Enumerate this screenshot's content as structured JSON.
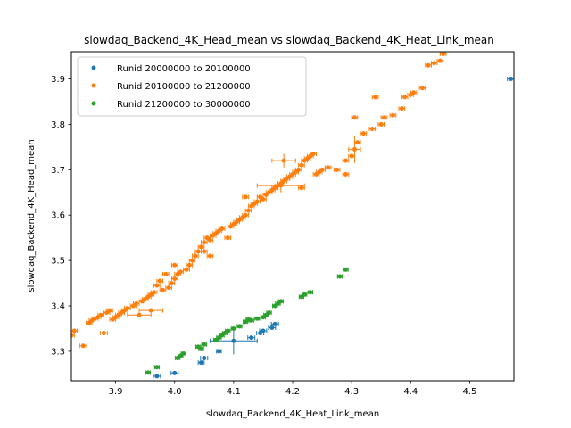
{
  "chart_data": {
    "type": "scatter",
    "title": "slowdaq_Backend_4K_Head_mean vs slowdaq_Backend_4K_Heat_Link_mean",
    "xlabel": "slowdaq_Backend_4K_Heat_Link_mean",
    "ylabel": "slowdaq_Backend_4K_Head_mean",
    "xlim": [
      3.825,
      4.575
    ],
    "ylim": [
      3.235,
      3.96
    ],
    "x_ticks": [
      "3.9",
      "4.0",
      "4.1",
      "4.2",
      "4.3",
      "4.4",
      "4.5"
    ],
    "y_ticks": [
      "3.3",
      "3.4",
      "3.5",
      "3.6",
      "3.7",
      "3.8",
      "3.9"
    ],
    "error_bars": true,
    "grid": false,
    "legend_position": "top-left",
    "series": [
      {
        "name": "Runid 20000000 to 20100000",
        "color": "#1f77b4",
        "points": [
          [
            3.97,
            3.245,
            0.006,
            0.003
          ],
          [
            4.0,
            3.252,
            0.006,
            0.003
          ],
          [
            4.045,
            3.275,
            0.005,
            0.003
          ],
          [
            4.05,
            3.285,
            0.006,
            0.003
          ],
          [
            4.075,
            3.3,
            0.004,
            0.005
          ],
          [
            4.1,
            3.323,
            0.04,
            0.03
          ],
          [
            4.13,
            3.33,
            0.006,
            0.003
          ],
          [
            4.145,
            3.34,
            0.006,
            0.003
          ],
          [
            4.15,
            3.345,
            0.006,
            0.003
          ],
          [
            4.165,
            3.352,
            0.006,
            0.003
          ],
          [
            4.17,
            3.36,
            0.006,
            0.003
          ],
          [
            4.57,
            3.9,
            0.006,
            0.004
          ]
        ]
      },
      {
        "name": "Runid 20100000 to 21200000",
        "color": "#ff7f0e",
        "points": [
          [
            3.825,
            3.335,
            0.005,
            0.004
          ],
          [
            3.83,
            3.345,
            0.005,
            0.004
          ],
          [
            3.845,
            3.312,
            0.006,
            0.004
          ],
          [
            3.855,
            3.362,
            0.005,
            0.004
          ],
          [
            3.86,
            3.368,
            0.005,
            0.004
          ],
          [
            3.865,
            3.372,
            0.005,
            0.004
          ],
          [
            3.87,
            3.375,
            0.005,
            0.004
          ],
          [
            3.875,
            3.38,
            0.005,
            0.004
          ],
          [
            3.88,
            3.34,
            0.006,
            0.004
          ],
          [
            3.885,
            3.385,
            0.005,
            0.004
          ],
          [
            3.89,
            3.39,
            0.005,
            0.004
          ],
          [
            3.895,
            3.37,
            0.005,
            0.004
          ],
          [
            3.9,
            3.375,
            0.005,
            0.004
          ],
          [
            3.905,
            3.38,
            0.005,
            0.004
          ],
          [
            3.91,
            3.385,
            0.005,
            0.004
          ],
          [
            3.915,
            3.39,
            0.005,
            0.004
          ],
          [
            3.92,
            3.395,
            0.005,
            0.004
          ],
          [
            3.93,
            3.4,
            0.005,
            0.004
          ],
          [
            3.935,
            3.405,
            0.005,
            0.004
          ],
          [
            3.94,
            3.38,
            0.02,
            0.004
          ],
          [
            3.945,
            3.41,
            0.005,
            0.004
          ],
          [
            3.95,
            3.415,
            0.005,
            0.004
          ],
          [
            3.955,
            3.42,
            0.005,
            0.004
          ],
          [
            3.96,
            3.425,
            0.005,
            0.004
          ],
          [
            3.965,
            3.43,
            0.005,
            0.004
          ],
          [
            3.97,
            3.445,
            0.005,
            0.004
          ],
          [
            3.975,
            3.455,
            0.005,
            0.004
          ],
          [
            3.98,
            3.435,
            0.005,
            0.004
          ],
          [
            3.99,
            3.44,
            0.005,
            0.004
          ],
          [
            3.995,
            3.45,
            0.005,
            0.004
          ],
          [
            4.0,
            3.46,
            0.005,
            0.004
          ],
          [
            4.005,
            3.47,
            0.005,
            0.004
          ],
          [
            4.01,
            3.475,
            0.005,
            0.004
          ],
          [
            4.02,
            3.48,
            0.005,
            0.004
          ],
          [
            4.025,
            3.49,
            0.005,
            0.004
          ],
          [
            4.03,
            3.5,
            0.005,
            0.004
          ],
          [
            4.035,
            3.51,
            0.005,
            0.004
          ],
          [
            4.04,
            3.52,
            0.005,
            0.004
          ],
          [
            4.045,
            3.53,
            0.005,
            0.004
          ],
          [
            4.05,
            3.54,
            0.005,
            0.004
          ],
          [
            4.055,
            3.55,
            0.005,
            0.004
          ],
          [
            4.06,
            3.545,
            0.005,
            0.004
          ],
          [
            4.065,
            3.555,
            0.005,
            0.004
          ],
          [
            4.07,
            3.56,
            0.005,
            0.004
          ],
          [
            4.075,
            3.565,
            0.005,
            0.004
          ],
          [
            4.08,
            3.57,
            0.005,
            0.004
          ],
          [
            4.09,
            3.55,
            0.005,
            0.004
          ],
          [
            4.095,
            3.575,
            0.005,
            0.004
          ],
          [
            4.1,
            3.58,
            0.005,
            0.004
          ],
          [
            4.105,
            3.585,
            0.005,
            0.004
          ],
          [
            4.11,
            3.59,
            0.005,
            0.004
          ],
          [
            4.115,
            3.595,
            0.005,
            0.004
          ],
          [
            4.12,
            3.6,
            0.005,
            0.004
          ],
          [
            4.125,
            3.61,
            0.005,
            0.004
          ],
          [
            4.13,
            3.62,
            0.005,
            0.004
          ],
          [
            4.135,
            3.625,
            0.005,
            0.004
          ],
          [
            4.14,
            3.63,
            0.005,
            0.004
          ],
          [
            4.145,
            3.64,
            0.005,
            0.004
          ],
          [
            4.15,
            3.635,
            0.005,
            0.004
          ],
          [
            4.155,
            3.645,
            0.005,
            0.004
          ],
          [
            4.16,
            3.65,
            0.005,
            0.004
          ],
          [
            4.165,
            3.655,
            0.005,
            0.004
          ],
          [
            4.17,
            3.66,
            0.005,
            0.004
          ],
          [
            4.175,
            3.665,
            0.005,
            0.004
          ],
          [
            4.18,
            3.67,
            0.005,
            0.004
          ],
          [
            4.185,
            3.675,
            0.005,
            0.004
          ],
          [
            4.19,
            3.68,
            0.005,
            0.004
          ],
          [
            4.195,
            3.685,
            0.005,
            0.004
          ],
          [
            4.2,
            3.69,
            0.005,
            0.004
          ],
          [
            4.205,
            3.695,
            0.005,
            0.004
          ],
          [
            4.21,
            3.7,
            0.005,
            0.004
          ],
          [
            4.215,
            3.71,
            0.005,
            0.004
          ],
          [
            4.22,
            3.72,
            0.005,
            0.004
          ],
          [
            4.225,
            3.725,
            0.005,
            0.004
          ],
          [
            4.23,
            3.73,
            0.005,
            0.004
          ],
          [
            4.235,
            3.735,
            0.005,
            0.004
          ],
          [
            4.185,
            3.72,
            0.02,
            0.015
          ],
          [
            4.18,
            3.665,
            0.04,
            0.015
          ],
          [
            4.24,
            3.69,
            0.005,
            0.004
          ],
          [
            4.245,
            3.695,
            0.005,
            0.004
          ],
          [
            4.25,
            3.7,
            0.005,
            0.004
          ],
          [
            4.26,
            3.705,
            0.005,
            0.004
          ],
          [
            4.275,
            3.7,
            0.005,
            0.004
          ],
          [
            4.29,
            3.72,
            0.005,
            0.004
          ],
          [
            4.3,
            3.73,
            0.005,
            0.004
          ],
          [
            4.305,
            3.745,
            0.01,
            0.03
          ],
          [
            4.31,
            3.76,
            0.005,
            0.004
          ],
          [
            4.32,
            3.78,
            0.005,
            0.004
          ],
          [
            4.335,
            3.79,
            0.005,
            0.004
          ],
          [
            4.35,
            3.8,
            0.005,
            0.004
          ],
          [
            4.355,
            3.815,
            0.005,
            0.004
          ],
          [
            4.37,
            3.82,
            0.005,
            0.004
          ],
          [
            4.385,
            3.835,
            0.005,
            0.004
          ],
          [
            4.39,
            3.86,
            0.005,
            0.004
          ],
          [
            4.4,
            3.865,
            0.005,
            0.004
          ],
          [
            4.405,
            3.87,
            0.005,
            0.004
          ],
          [
            4.42,
            3.88,
            0.005,
            0.004
          ],
          [
            4.43,
            3.93,
            0.005,
            0.004
          ],
          [
            4.44,
            3.935,
            0.005,
            0.004
          ],
          [
            4.45,
            3.94,
            0.005,
            0.004
          ],
          [
            4.455,
            3.955,
            0.005,
            0.004
          ],
          [
            4.305,
            3.815,
            0.005,
            0.004
          ],
          [
            4.34,
            3.86,
            0.005,
            0.004
          ],
          [
            4.29,
            3.69,
            0.005,
            0.004
          ],
          [
            4.215,
            3.66,
            0.005,
            0.004
          ],
          [
            4.12,
            3.64,
            0.005,
            0.004
          ],
          [
            4.05,
            3.52,
            0.005,
            0.004
          ],
          [
            4.0,
            3.49,
            0.005,
            0.004
          ],
          [
            3.96,
            3.39,
            0.02,
            0.004
          ],
          [
            3.985,
            3.47,
            0.005,
            0.004
          ],
          [
            4.06,
            3.51,
            0.005,
            0.004
          ]
        ]
      },
      {
        "name": "Runid 21200000 to 30000000",
        "color": "#2ca02c",
        "points": [
          [
            3.955,
            3.253,
            0.004,
            0.003
          ],
          [
            3.97,
            3.265,
            0.004,
            0.003
          ],
          [
            4.005,
            3.285,
            0.004,
            0.003
          ],
          [
            4.01,
            3.29,
            0.004,
            0.003
          ],
          [
            4.015,
            3.295,
            0.004,
            0.003
          ],
          [
            4.04,
            3.31,
            0.004,
            0.003
          ],
          [
            4.045,
            3.305,
            0.004,
            0.003
          ],
          [
            4.05,
            3.315,
            0.004,
            0.003
          ],
          [
            4.07,
            3.325,
            0.004,
            0.003
          ],
          [
            4.075,
            3.33,
            0.004,
            0.003
          ],
          [
            4.08,
            3.335,
            0.004,
            0.003
          ],
          [
            4.085,
            3.34,
            0.004,
            0.003
          ],
          [
            4.09,
            3.345,
            0.004,
            0.003
          ],
          [
            4.1,
            3.35,
            0.004,
            0.003
          ],
          [
            4.11,
            3.355,
            0.004,
            0.003
          ],
          [
            4.12,
            3.365,
            0.004,
            0.003
          ],
          [
            4.125,
            3.37,
            0.004,
            0.003
          ],
          [
            4.13,
            3.368,
            0.004,
            0.003
          ],
          [
            4.14,
            3.372,
            0.004,
            0.003
          ],
          [
            4.15,
            3.375,
            0.004,
            0.003
          ],
          [
            4.155,
            3.38,
            0.004,
            0.003
          ],
          [
            4.16,
            3.385,
            0.004,
            0.003
          ],
          [
            4.17,
            3.4,
            0.004,
            0.003
          ],
          [
            4.175,
            3.405,
            0.004,
            0.003
          ],
          [
            4.18,
            3.41,
            0.004,
            0.003
          ],
          [
            4.215,
            3.42,
            0.004,
            0.003
          ],
          [
            4.22,
            3.425,
            0.004,
            0.003
          ],
          [
            4.23,
            3.43,
            0.004,
            0.003
          ],
          [
            4.28,
            3.465,
            0.004,
            0.003
          ],
          [
            4.29,
            3.48,
            0.004,
            0.003
          ]
        ]
      }
    ]
  }
}
